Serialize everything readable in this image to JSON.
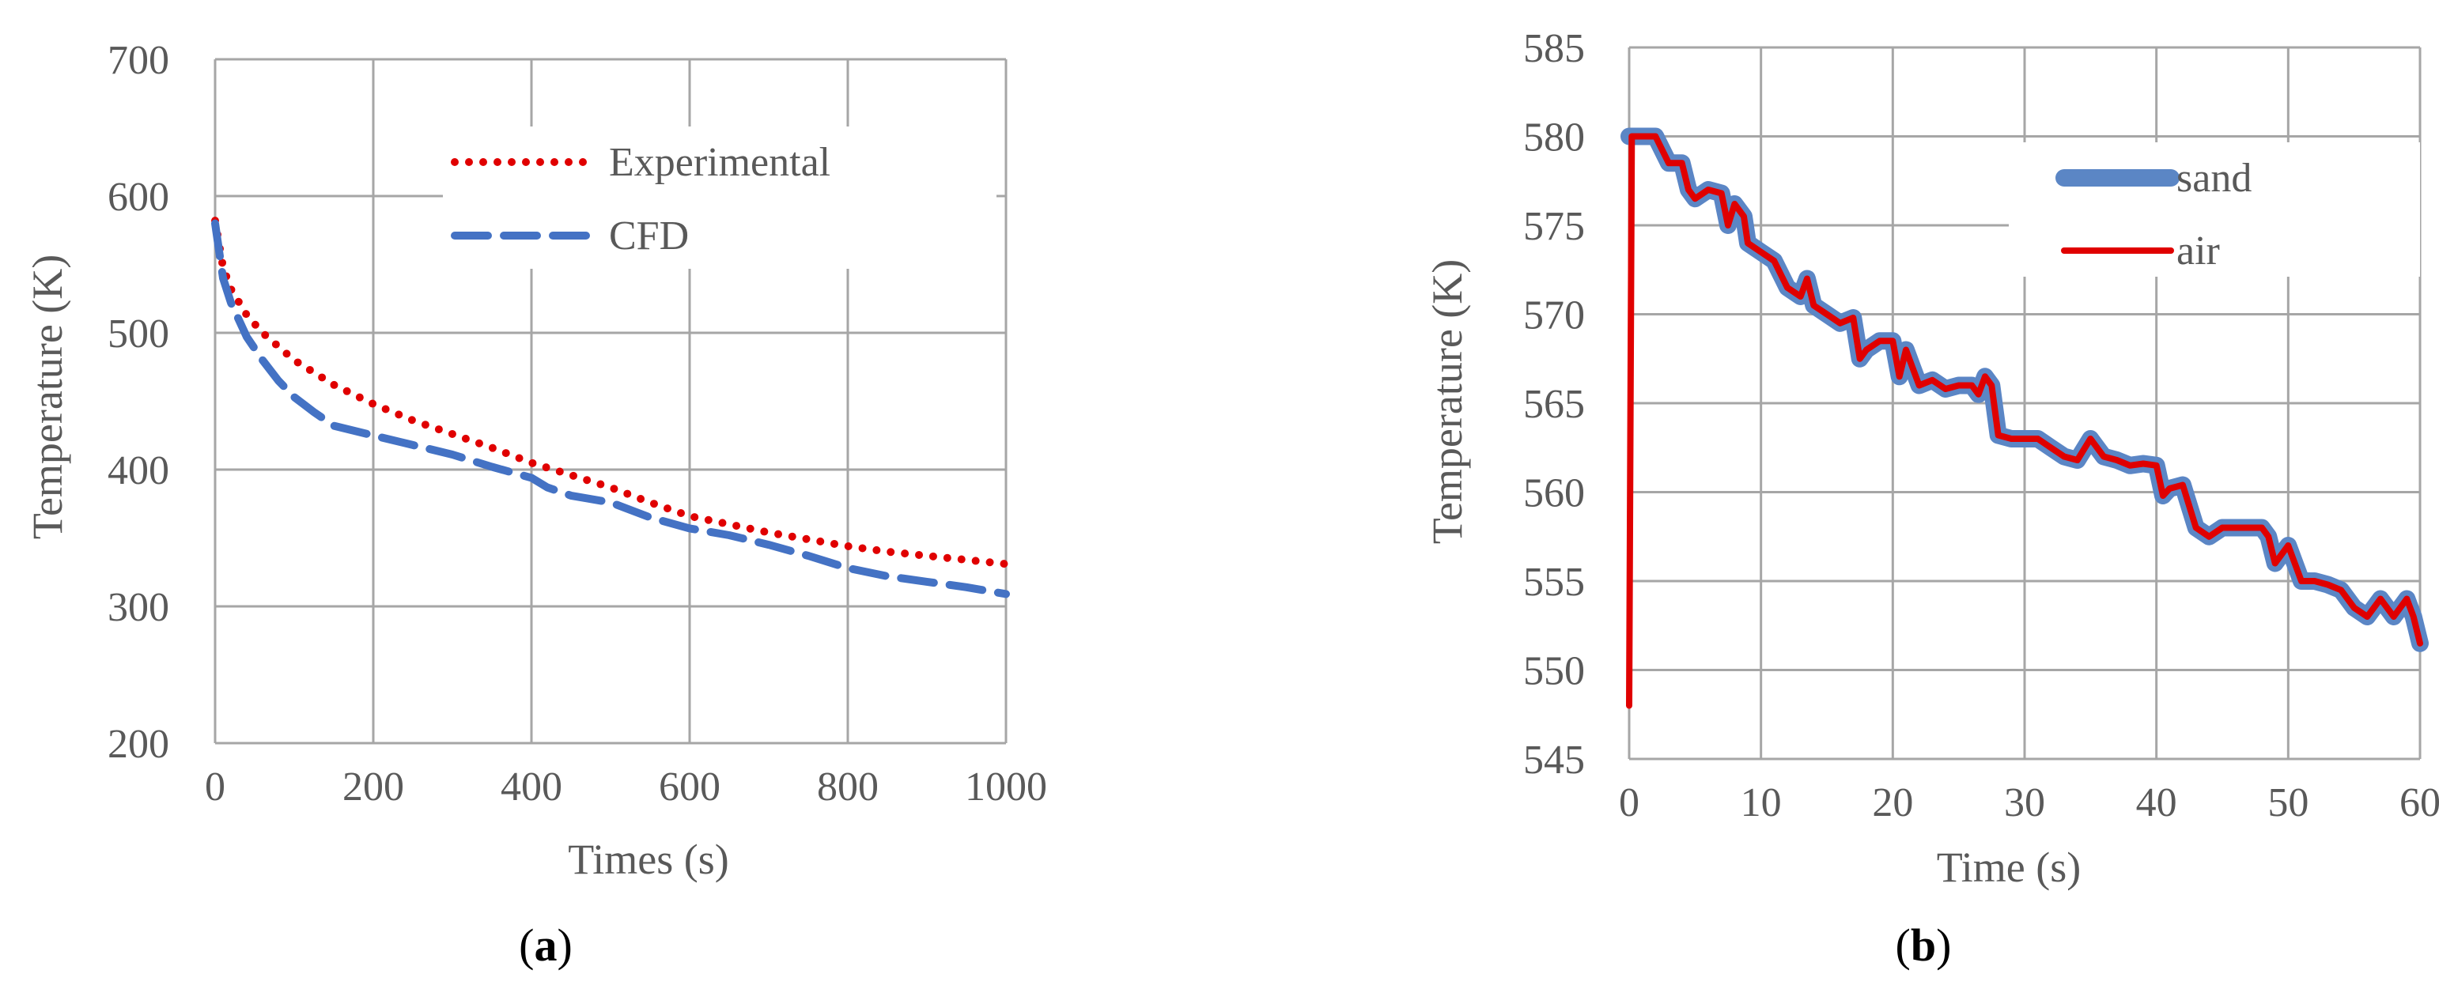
{
  "chart_data": [
    {
      "id": "a",
      "type": "line",
      "caption_open": "(",
      "caption_letter": "a",
      "caption_close": ")",
      "title": "",
      "xlabel": "Times (s)",
      "ylabel": "Temperature (K)",
      "xlim": [
        0,
        1000
      ],
      "ylim": [
        200,
        700
      ],
      "xticks": [
        0,
        200,
        400,
        600,
        800,
        1000
      ],
      "yticks": [
        200,
        300,
        400,
        500,
        600,
        700
      ],
      "legend_position": "top-right",
      "series": [
        {
          "name": "Experimental",
          "color": "#e00000",
          "style": "dotted",
          "x": [
            0,
            10,
            20,
            40,
            60,
            80,
            100,
            150,
            200,
            250,
            300,
            350,
            400,
            450,
            500,
            550,
            600,
            650,
            700,
            750,
            800,
            850,
            900,
            950,
            1000
          ],
          "y": [
            582,
            548,
            532,
            513,
            500,
            490,
            480,
            462,
            448,
            436,
            426,
            416,
            405,
            396,
            387,
            376,
            366,
            360,
            354,
            349,
            344,
            340,
            337,
            334,
            331
          ]
        },
        {
          "name": "CFD",
          "color": "#4472c4",
          "style": "dashed",
          "x": [
            0,
            5,
            10,
            20,
            40,
            60,
            80,
            100,
            125,
            150,
            200,
            250,
            300,
            350,
            400,
            420,
            450,
            500,
            550,
            600,
            650,
            700,
            750,
            800,
            850,
            900,
            950,
            1000
          ],
          "y": [
            580,
            560,
            540,
            522,
            497,
            480,
            465,
            453,
            442,
            432,
            425,
            418,
            411,
            402,
            394,
            387,
            381,
            376,
            365,
            357,
            352,
            345,
            337,
            328,
            322,
            318,
            314,
            309
          ]
        }
      ]
    },
    {
      "id": "b",
      "type": "line",
      "caption_open": "(",
      "caption_letter": "b",
      "caption_close": ")",
      "title": "",
      "xlabel": "Time (s)",
      "ylabel": "Temperature (K)",
      "xlim": [
        0,
        60
      ],
      "ylim": [
        545,
        585
      ],
      "xticks": [
        0,
        10,
        20,
        30,
        40,
        50,
        60
      ],
      "yticks": [
        545,
        550,
        555,
        560,
        565,
        570,
        575,
        580,
        585
      ],
      "legend_position": "top-right",
      "series": [
        {
          "name": "sand",
          "color": "#5b86c5",
          "style": "thick-solid",
          "x": [
            0,
            0.2,
            2,
            3,
            4,
            4.5,
            5,
            6,
            7,
            7.5,
            8,
            8.7,
            9,
            10,
            11,
            12,
            13,
            13.5,
            14,
            15,
            16,
            17,
            17.5,
            18,
            19,
            20,
            20.5,
            21,
            21.5,
            22,
            23,
            24,
            25,
            26,
            26.5,
            27,
            27.5,
            28,
            29,
            30,
            31,
            32,
            33,
            34,
            35,
            36,
            37,
            38,
            39,
            40,
            40.5,
            41,
            42,
            43,
            44,
            45,
            46,
            47,
            48,
            48.5,
            49,
            50,
            51,
            52,
            53,
            54,
            55,
            56,
            57,
            58,
            59,
            59.5,
            60
          ],
          "y": [
            580,
            580,
            580,
            578.5,
            578.5,
            577,
            576.5,
            577,
            576.8,
            575,
            576.2,
            575.5,
            574,
            573.5,
            573,
            571.5,
            571,
            572,
            570.5,
            570,
            569.5,
            569.8,
            567.5,
            568,
            568.5,
            568.5,
            566.5,
            568,
            567,
            566,
            566.3,
            565.8,
            566,
            566,
            565.5,
            566.5,
            566,
            563.2,
            563,
            563,
            563,
            562.5,
            562,
            561.8,
            563,
            562,
            561.8,
            561.5,
            561.6,
            561.5,
            559.8,
            560.2,
            560.4,
            558,
            557.5,
            558,
            558,
            558,
            558,
            557.5,
            556,
            557,
            555,
            555,
            554.8,
            554.5,
            553.5,
            553,
            554,
            553,
            554,
            553,
            551.5
          ]
        },
        {
          "name": "air",
          "color": "#e00000",
          "style": "solid",
          "x": [
            0,
            0.1,
            0.2,
            2,
            3,
            4,
            4.5,
            5,
            6,
            7,
            7.5,
            8,
            8.7,
            9,
            10,
            11,
            12,
            13,
            13.5,
            14,
            15,
            16,
            17,
            17.5,
            18,
            19,
            20,
            20.5,
            21,
            21.5,
            22,
            23,
            24,
            25,
            26,
            26.5,
            27,
            27.5,
            28,
            29,
            30,
            31,
            32,
            33,
            34,
            35,
            36,
            37,
            38,
            39,
            40,
            40.5,
            41,
            42,
            43,
            44,
            45,
            46,
            47,
            48,
            48.5,
            49,
            50,
            51,
            52,
            53,
            54,
            55,
            56,
            57,
            58,
            59,
            59.5,
            60
          ],
          "y": [
            548,
            565,
            580,
            580,
            578.5,
            578.5,
            577,
            576.5,
            577,
            576.8,
            575,
            576.2,
            575.5,
            574,
            573.5,
            573,
            571.5,
            571,
            572,
            570.5,
            570,
            569.5,
            569.8,
            567.5,
            568,
            568.5,
            568.5,
            566.5,
            568,
            567,
            566,
            566.3,
            565.8,
            566,
            566,
            565.5,
            566.5,
            566,
            563.2,
            563,
            563,
            563,
            562.5,
            562,
            561.8,
            563,
            562,
            561.8,
            561.5,
            561.6,
            561.5,
            559.8,
            560.2,
            560.4,
            558,
            557.5,
            558,
            558,
            558,
            558,
            557.5,
            556,
            557,
            555,
            555,
            554.8,
            554.5,
            553.5,
            553,
            554,
            553,
            554,
            553,
            551.5
          ]
        }
      ]
    }
  ]
}
